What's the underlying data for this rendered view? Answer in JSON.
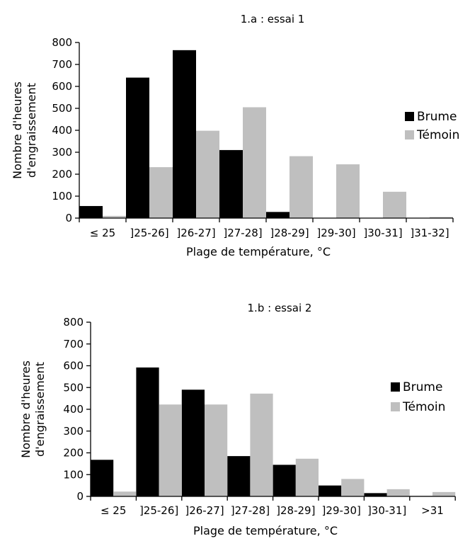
{
  "colors": {
    "brume": "#000000",
    "temoin": "#bfbfbf",
    "axis": "#000000"
  },
  "chart_data": [
    {
      "type": "bar",
      "title": "1.a : essai 1",
      "xlabel": "Plage de température, °C",
      "ylabel_lines": [
        "Nombre d'heures",
        "d'engraissement"
      ],
      "categories": [
        "≤ 25",
        "]25-26]",
        "]26-27]",
        "]27-28]",
        "]28-29]",
        "]29-30]",
        "]30-31]",
        "]31-32]"
      ],
      "ylim": [
        0,
        800
      ],
      "yticks": [
        0,
        100,
        200,
        300,
        400,
        500,
        600,
        700,
        800
      ],
      "legend_position": "right",
      "grid": false,
      "series": [
        {
          "name": "Brume",
          "values": [
            55,
            640,
            765,
            310,
            28,
            0,
            0,
            0
          ]
        },
        {
          "name": "Témoin",
          "values": [
            10,
            232,
            398,
            505,
            282,
            245,
            120,
            5
          ]
        }
      ]
    },
    {
      "type": "bar",
      "title": "1.b : essai 2",
      "xlabel": "Plage de température, °C",
      "ylabel_lines": [
        "Nombre d'heures",
        "d'engraissement"
      ],
      "categories": [
        "≤ 25",
        "]25-26]",
        "]26-27]",
        "]27-28]",
        "]28-29]",
        "]29-30]",
        "]30-31]",
        ">31"
      ],
      "ylim": [
        0,
        800
      ],
      "yticks": [
        0,
        100,
        200,
        300,
        400,
        500,
        600,
        700,
        800
      ],
      "legend_position": "right",
      "grid": false,
      "series": [
        {
          "name": "Brume",
          "values": [
            168,
            592,
            490,
            185,
            145,
            50,
            15,
            2
          ]
        },
        {
          "name": "Témoin",
          "values": [
            22,
            422,
            422,
            472,
            173,
            80,
            33,
            20
          ]
        }
      ]
    }
  ]
}
